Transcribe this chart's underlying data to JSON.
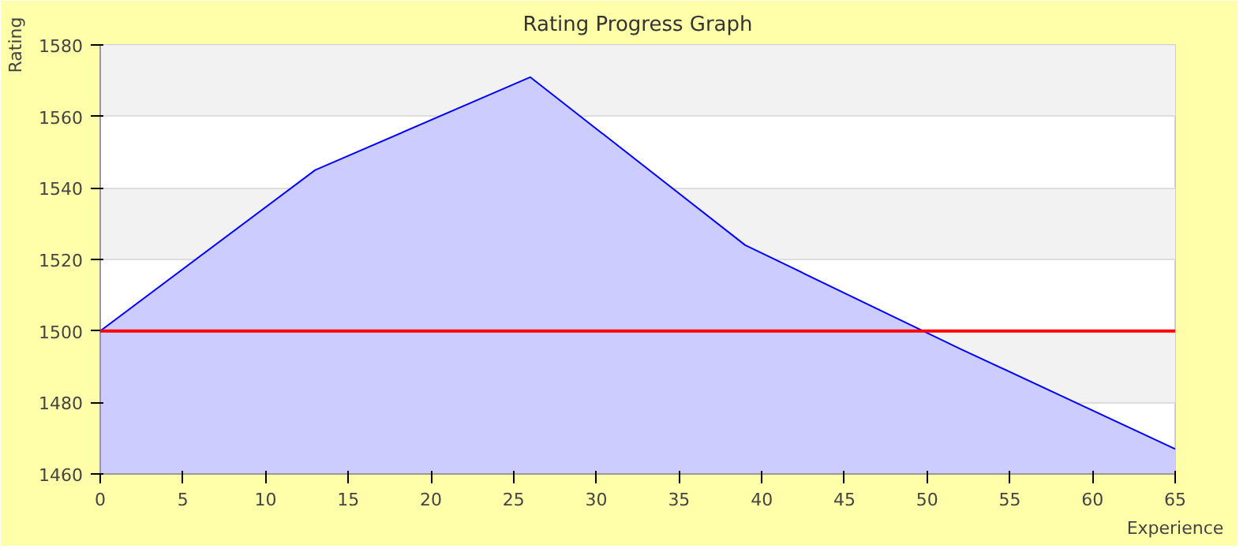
{
  "chart_data": {
    "type": "area",
    "title": "Rating Progress Graph",
    "xlabel": "Experience",
    "ylabel": "Rating",
    "x": [
      0,
      13,
      26,
      39,
      52,
      65
    ],
    "series": [
      {
        "color": "#0000ff",
        "values": [
          1500,
          1545,
          1571,
          1524,
          1495,
          1467
        ]
      }
    ],
    "xlim": [
      0,
      65
    ],
    "xticks": [
      0,
      5,
      10,
      15,
      20,
      25,
      30,
      35,
      40,
      45,
      50,
      55,
      60,
      65
    ],
    "ylim": [
      1460,
      1580
    ],
    "yticks": [
      1460,
      1480,
      1500,
      1520,
      1540,
      1560,
      1580
    ],
    "grid": "y",
    "ref_lines": [
      {
        "axis": "y",
        "value": 1500,
        "color": "#ff0000"
      }
    ]
  }
}
